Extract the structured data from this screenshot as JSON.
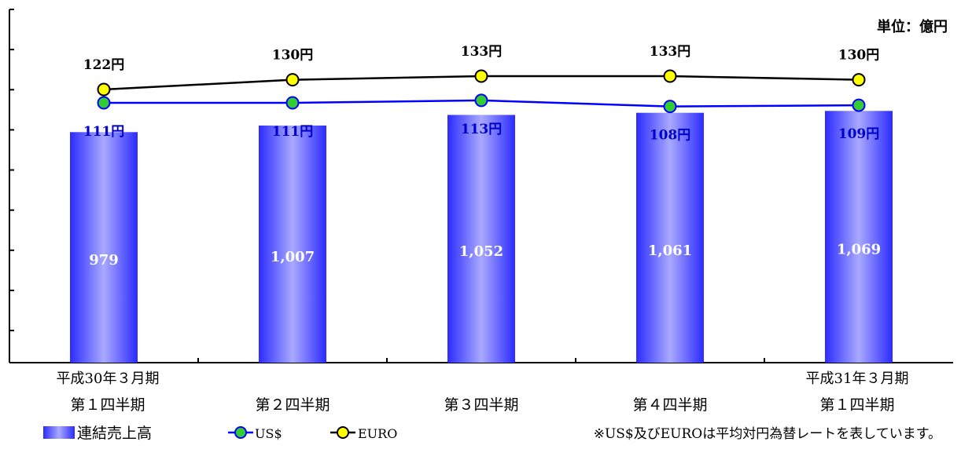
{
  "chart_data": {
    "type": "bar",
    "unit": "単位：億円",
    "categories": [
      [
        "平成30年３月期",
        "第１四半期"
      ],
      [
        "",
        "第２四半期"
      ],
      [
        "",
        "第３四半期"
      ],
      [
        "",
        "第４四半期"
      ],
      [
        "平成31年３月期",
        "第１四半期"
      ]
    ],
    "bar_series": {
      "name": "連結売上高",
      "values": [
        979,
        1007,
        1052,
        1061,
        1069
      ],
      "labels": [
        "979",
        "1,007",
        "1,052",
        "1,061",
        "1,069"
      ]
    },
    "line_series": [
      {
        "name": "US$",
        "values": [
          111,
          111,
          113,
          108,
          109
        ],
        "labels": [
          "111円",
          "111円",
          "113円",
          "108円",
          "109円"
        ]
      },
      {
        "name": "EURO",
        "values": [
          122,
          130,
          133,
          133,
          130
        ],
        "labels": [
          "122円",
          "130円",
          "133円",
          "133円",
          "130円"
        ]
      }
    ],
    "legend_placement": "bottom",
    "note": "※US$及びEUROは平均対円為替レートを表しています。",
    "colors": {
      "bar_edge": "#2b2bff",
      "bar_center": "#a9a9ff",
      "bar_label": "#ffffff",
      "usd_line": "#0000ff",
      "usd_marker_fill": "#33cc33",
      "usd_label": "#0000cc",
      "euro_line": "#000000",
      "euro_marker_fill": "#ffff00",
      "euro_label": "#000000",
      "axis": "#000000"
    }
  }
}
